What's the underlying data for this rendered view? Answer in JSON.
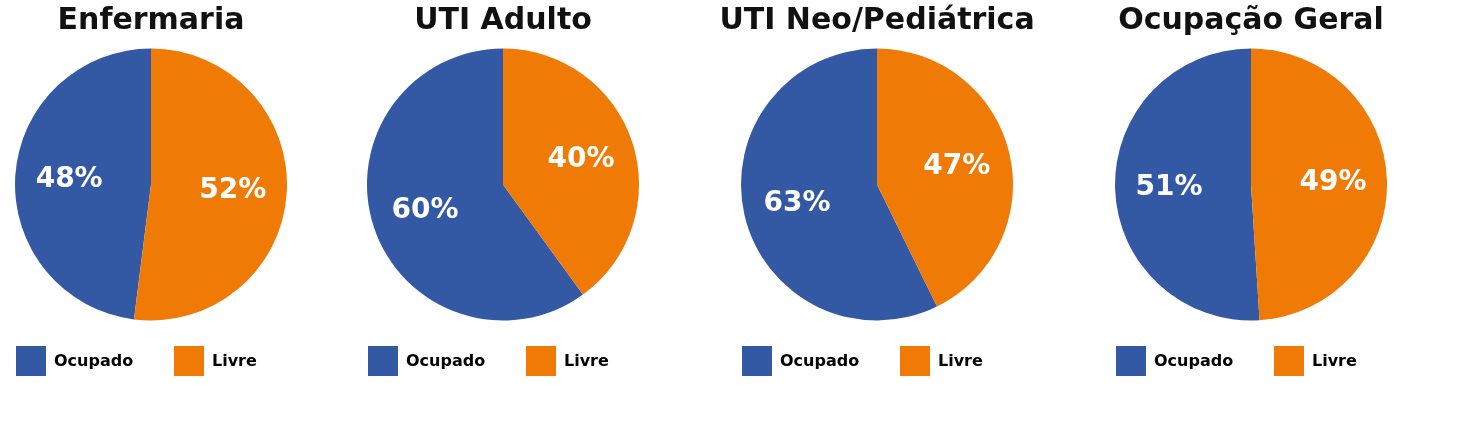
{
  "chart_data": [
    {
      "type": "pie",
      "title": "Enfermaria",
      "categories": [
        "Ocupado",
        "Livre"
      ],
      "values": [
        48,
        52
      ],
      "colors": [
        "#3358a4",
        "#ef7a06"
      ],
      "value_labels": [
        "48%",
        "52%"
      ],
      "legend": "bottom"
    },
    {
      "type": "pie",
      "title": "UTI Adulto",
      "categories": [
        "Ocupado",
        "Livre"
      ],
      "values": [
        60,
        40
      ],
      "colors": [
        "#3358a4",
        "#ef7a06"
      ],
      "value_labels": [
        "60%",
        "40%"
      ],
      "legend": "bottom"
    },
    {
      "type": "pie",
      "title": "UTI Neo/Pediátrica",
      "categories": [
        "Ocupado",
        "Livre"
      ],
      "values": [
        63,
        47
      ],
      "colors": [
        "#3358a4",
        "#ef7a06"
      ],
      "value_labels": [
        "63%",
        "47%"
      ],
      "legend": "bottom"
    },
    {
      "type": "pie",
      "title": "Ocupação Geral",
      "categories": [
        "Ocupado",
        "Livre"
      ],
      "values": [
        51,
        49
      ],
      "colors": [
        "#3358a4",
        "#ef7a06"
      ],
      "value_labels": [
        "51%",
        "49%"
      ],
      "legend": "bottom"
    }
  ]
}
